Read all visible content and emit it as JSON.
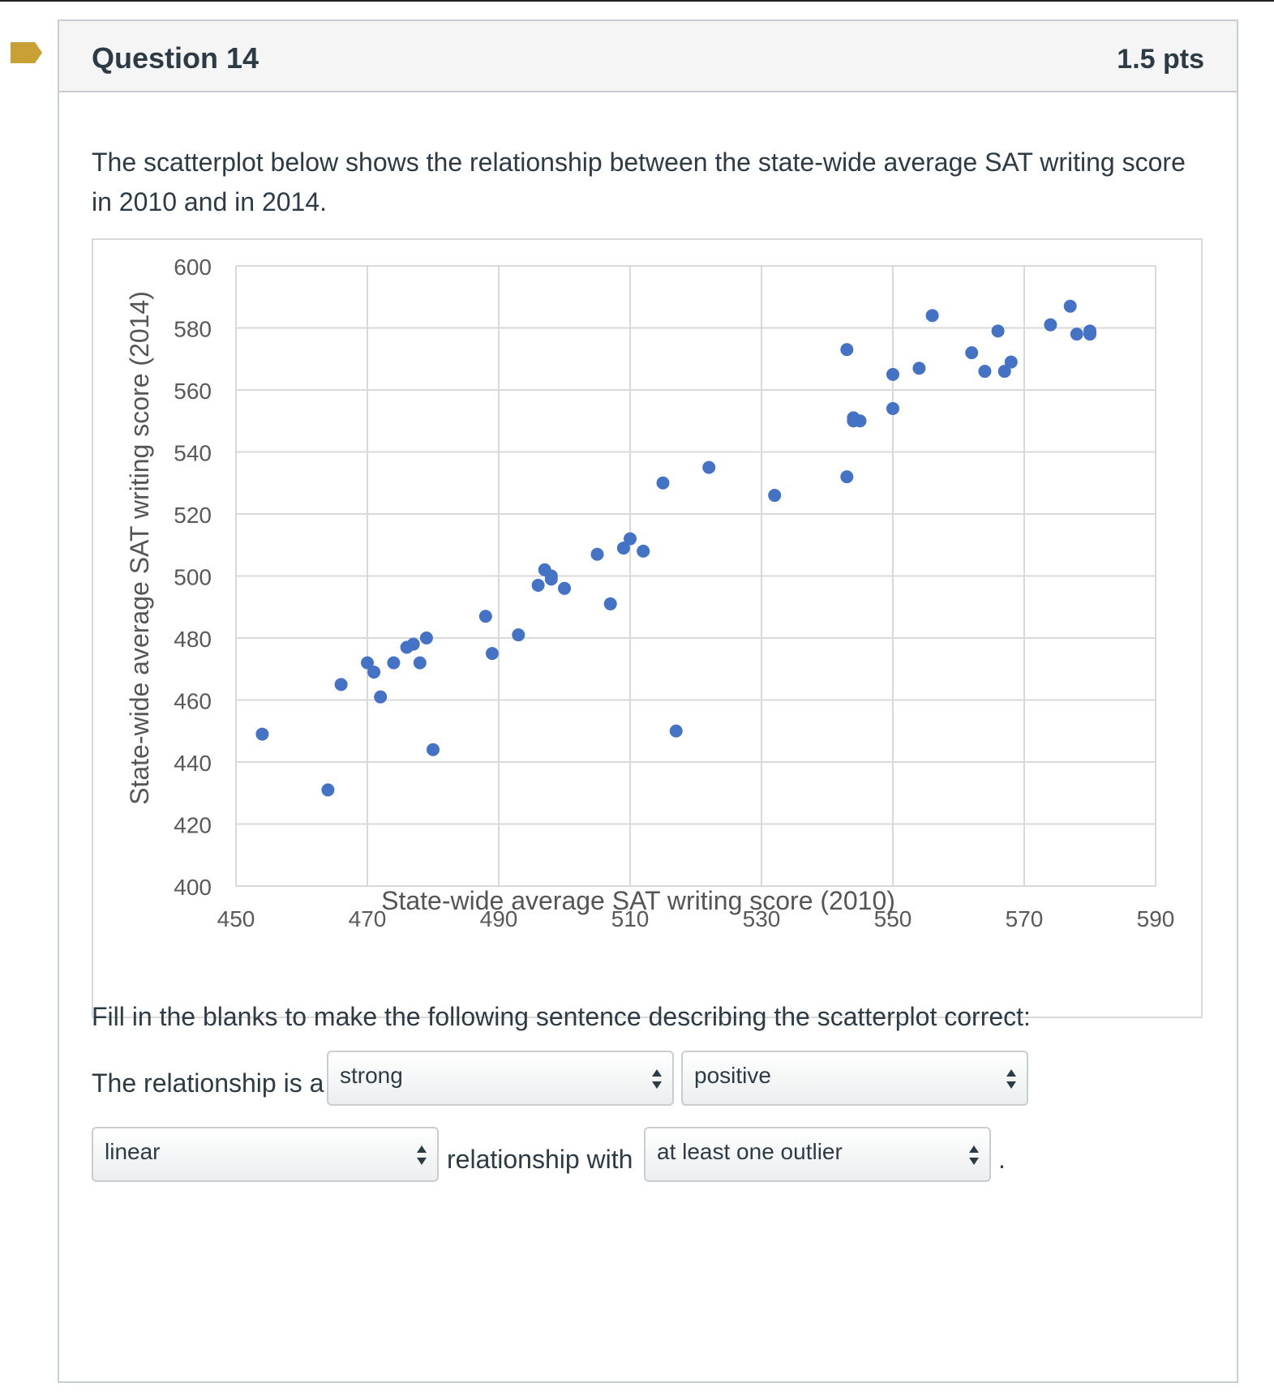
{
  "question": {
    "title": "Question 14",
    "points": "1.5 pts",
    "prompt": "The scatterplot below shows the relationship between the state-wide average SAT writing score in 2010 and in 2014.",
    "fill_instructions": "Fill in the blanks to make the following sentence describing the scatterplot correct:",
    "sentence_start": "The relationship is a",
    "sentence_middle": "relationship with",
    "sentence_end": "."
  },
  "dropdowns": {
    "strength": "strong",
    "direction": "positive",
    "form": "linear",
    "outliers": "at least one outlier"
  },
  "colors": {
    "point": "#4472c4",
    "flag": "#c9a034",
    "grid": "#d9d9d9"
  },
  "chart_data": {
    "type": "scatter",
    "xlabel": "State-wide average SAT writing score (2010)",
    "ylabel": "State-wide average SAT writing score (2014)",
    "xlim": [
      450,
      590
    ],
    "ylim": [
      400,
      600
    ],
    "xticks": [
      450,
      470,
      490,
      510,
      530,
      550,
      570,
      590
    ],
    "yticks": [
      400,
      420,
      440,
      460,
      480,
      500,
      520,
      540,
      560,
      580,
      600
    ],
    "grid": true,
    "points": [
      [
        454,
        449
      ],
      [
        464,
        431
      ],
      [
        466,
        465
      ],
      [
        470,
        472
      ],
      [
        471,
        469
      ],
      [
        472,
        461
      ],
      [
        474,
        472
      ],
      [
        476,
        477
      ],
      [
        477,
        478
      ],
      [
        478,
        472
      ],
      [
        479,
        480
      ],
      [
        480,
        444
      ],
      [
        488,
        487
      ],
      [
        489,
        475
      ],
      [
        493,
        481
      ],
      [
        496,
        497
      ],
      [
        497,
        502
      ],
      [
        498,
        500
      ],
      [
        498,
        499
      ],
      [
        500,
        496
      ],
      [
        505,
        507
      ],
      [
        507,
        491
      ],
      [
        509,
        509
      ],
      [
        510,
        512
      ],
      [
        512,
        508
      ],
      [
        515,
        530
      ],
      [
        517,
        450
      ],
      [
        522,
        535
      ],
      [
        532,
        526
      ],
      [
        543,
        532
      ],
      [
        543,
        573
      ],
      [
        544,
        551
      ],
      [
        544,
        550
      ],
      [
        545,
        550
      ],
      [
        550,
        565
      ],
      [
        550,
        554
      ],
      [
        554,
        567
      ],
      [
        556,
        584
      ],
      [
        562,
        572
      ],
      [
        564,
        566
      ],
      [
        566,
        579
      ],
      [
        567,
        566
      ],
      [
        568,
        569
      ],
      [
        574,
        581
      ],
      [
        577,
        587
      ],
      [
        578,
        578
      ],
      [
        580,
        579
      ],
      [
        580,
        578
      ]
    ]
  }
}
